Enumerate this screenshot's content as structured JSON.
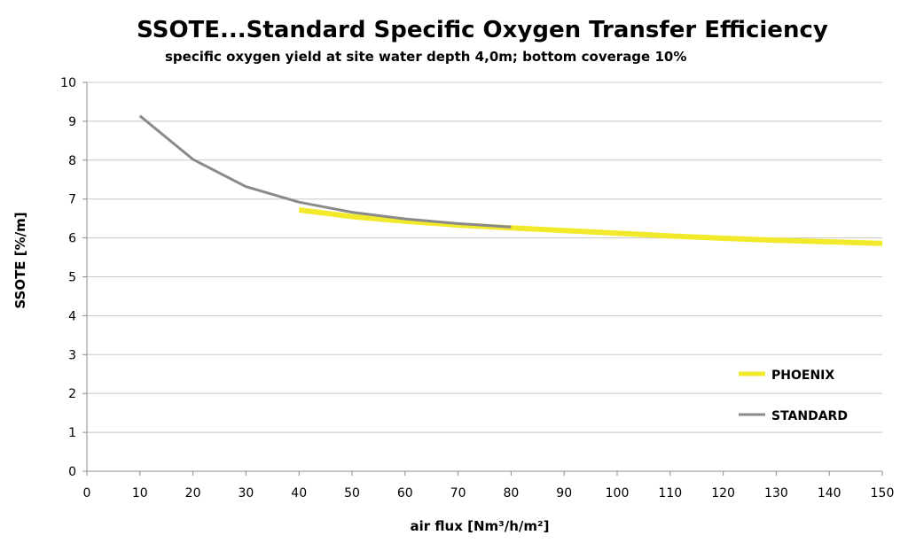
{
  "chart_data": {
    "type": "line",
    "title": "SSOTE...Standard Specific Oxygen Transfer Efficiency",
    "subtitle": "specific oxygen yield at site water depth 4,0m; bottom coverage 10%",
    "xlabel": "air flux [Nm³/h/m²]",
    "ylabel": "SSOTE [%/m]",
    "xlim": [
      0,
      150
    ],
    "ylim": [
      0,
      10
    ],
    "xticks": [
      0,
      10,
      20,
      30,
      40,
      50,
      60,
      70,
      80,
      90,
      100,
      110,
      120,
      130,
      140,
      150
    ],
    "yticks": [
      0,
      1,
      2,
      3,
      4,
      5,
      6,
      7,
      8,
      9,
      10
    ],
    "grid": "horizontal",
    "legend_position": "bottom-right",
    "series": [
      {
        "name": "PHOENIX",
        "color": "#f2e92b",
        "points": [
          {
            "x": 40,
            "y": 6.72
          },
          {
            "x": 50,
            "y": 6.55
          },
          {
            "x": 60,
            "y": 6.43
          },
          {
            "x": 70,
            "y": 6.33
          },
          {
            "x": 80,
            "y": 6.26
          },
          {
            "x": 90,
            "y": 6.19
          },
          {
            "x": 100,
            "y": 6.12
          },
          {
            "x": 110,
            "y": 6.05
          },
          {
            "x": 120,
            "y": 5.99
          },
          {
            "x": 130,
            "y": 5.94
          },
          {
            "x": 140,
            "y": 5.9
          },
          {
            "x": 150,
            "y": 5.86
          }
        ]
      },
      {
        "name": "STANDARD",
        "color": "#8a8a8a",
        "points": [
          {
            "x": 10,
            "y": 9.14
          },
          {
            "x": 20,
            "y": 8.02
          },
          {
            "x": 30,
            "y": 7.32
          },
          {
            "x": 40,
            "y": 6.92
          },
          {
            "x": 50,
            "y": 6.66
          },
          {
            "x": 60,
            "y": 6.49
          },
          {
            "x": 70,
            "y": 6.37
          },
          {
            "x": 80,
            "y": 6.28
          }
        ]
      }
    ]
  }
}
